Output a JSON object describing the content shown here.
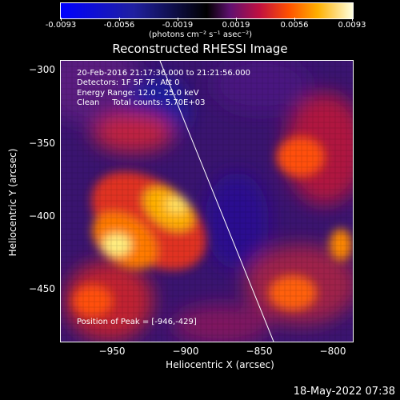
{
  "colorbar": {
    "ticks": [
      "-0.0093",
      "-0.0056",
      "-0.0019",
      "0.0019",
      "0.0056",
      "0.0093"
    ],
    "units": "(photons cm⁻² s⁻¹ asec⁻²)"
  },
  "title": "Reconstructed RHESSI Image",
  "info": {
    "time_range": "20-Feb-2016 21:17:36.000 to 21:21:56.000",
    "detectors": "Detectors: 1F 5F 7F, Att 0",
    "energy": "Energy Range: 12.0 - 25.0 keV",
    "clean": "Clean     Total counts: 5.70E+03",
    "peak": "Position of Peak = [-946,-429]"
  },
  "axes": {
    "xlabel": "Heliocentric X (arcsec)",
    "ylabel": "Heliocentric Y (arcsec)",
    "xticks": [
      "−950",
      "−900",
      "−850",
      "−800"
    ],
    "yticks": [
      "−300",
      "−350",
      "−400",
      "−450"
    ]
  },
  "timestamp": "18-May-2022 07:38"
}
